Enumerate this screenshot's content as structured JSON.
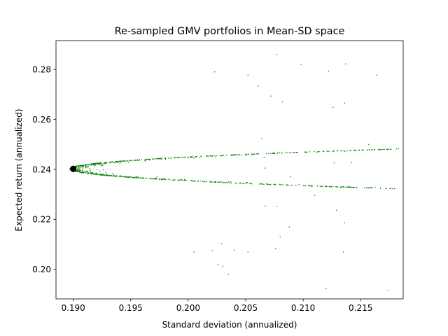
{
  "chart_data": {
    "type": "scatter",
    "title": "Re-sampled GMV portfolios in Mean-SD space",
    "xlabel": "Standard deviation (annualized)",
    "ylabel": "Expected return (annualized)",
    "xlim": [
      0.1885,
      0.2187
    ],
    "ylim": [
      0.1882,
      0.2915
    ],
    "x_ticks": [
      0.19,
      0.195,
      0.2,
      0.205,
      0.21,
      0.215
    ],
    "x_tick_labels": [
      "0.190",
      "0.195",
      "0.200",
      "0.205",
      "0.210",
      "0.215"
    ],
    "y_ticks": [
      0.2,
      0.22,
      0.24,
      0.26,
      0.28
    ],
    "y_tick_labels": [
      "0.20",
      "0.22",
      "0.24",
      "0.26",
      "0.28"
    ],
    "grid": false,
    "legend": "none",
    "series": [
      {
        "point_color": "#008000",
        "description_points": "resampled",
        "cloud": {
          "count": 1600,
          "vertex_x": 0.1897,
          "center_y": 0.2402,
          "curvature": 0.00225,
          "y_sd": 0.011
        },
        "outliers": [
          {
            "x": 0.2077,
            "y": 0.286
          },
          {
            "x": 0.2098,
            "y": 0.282
          },
          {
            "x": 0.2122,
            "y": 0.2793
          },
          {
            "x": 0.2137,
            "y": 0.2822
          },
          {
            "x": 0.2164,
            "y": 0.2777
          },
          {
            "x": 0.2052,
            "y": 0.2777
          },
          {
            "x": 0.2023,
            "y": 0.279
          },
          {
            "x": 0.2061,
            "y": 0.2733
          },
          {
            "x": 0.2072,
            "y": 0.2693
          },
          {
            "x": 0.2082,
            "y": 0.267
          },
          {
            "x": 0.2126,
            "y": 0.2648
          },
          {
            "x": 0.2136,
            "y": 0.2665
          },
          {
            "x": 0.2064,
            "y": 0.2523
          },
          {
            "x": 0.2066,
            "y": 0.2449
          },
          {
            "x": 0.2067,
            "y": 0.2405
          },
          {
            "x": 0.2157,
            "y": 0.25
          },
          {
            "x": 0.2183,
            "y": 0.2483
          },
          {
            "x": 0.2127,
            "y": 0.2426
          },
          {
            "x": 0.2142,
            "y": 0.2427
          },
          {
            "x": 0.2089,
            "y": 0.237
          },
          {
            "x": 0.211,
            "y": 0.2296
          },
          {
            "x": 0.2067,
            "y": 0.2253
          },
          {
            "x": 0.2077,
            "y": 0.2253
          },
          {
            "x": 0.2129,
            "y": 0.2237
          },
          {
            "x": 0.2136,
            "y": 0.2187
          },
          {
            "x": 0.2088,
            "y": 0.217
          },
          {
            "x": 0.208,
            "y": 0.213
          },
          {
            "x": 0.2076,
            "y": 0.2083
          },
          {
            "x": 0.2052,
            "y": 0.207
          },
          {
            "x": 0.2135,
            "y": 0.207
          },
          {
            "x": 0.2026,
            "y": 0.202
          },
          {
            "x": 0.203,
            "y": 0.2013
          },
          {
            "x": 0.2035,
            "y": 0.198
          },
          {
            "x": 0.212,
            "y": 0.1924
          },
          {
            "x": 0.2174,
            "y": 0.1915
          },
          {
            "x": 0.2029,
            "y": 0.2103
          },
          {
            "x": 0.2005,
            "y": 0.207
          },
          {
            "x": 0.2021,
            "y": 0.2075
          },
          {
            "x": 0.204,
            "y": 0.2078
          }
        ]
      },
      {
        "point_color": "#000000",
        "description_points": "gmv",
        "points": [
          {
            "x": 0.19,
            "y": 0.2402
          }
        ]
      }
    ]
  }
}
